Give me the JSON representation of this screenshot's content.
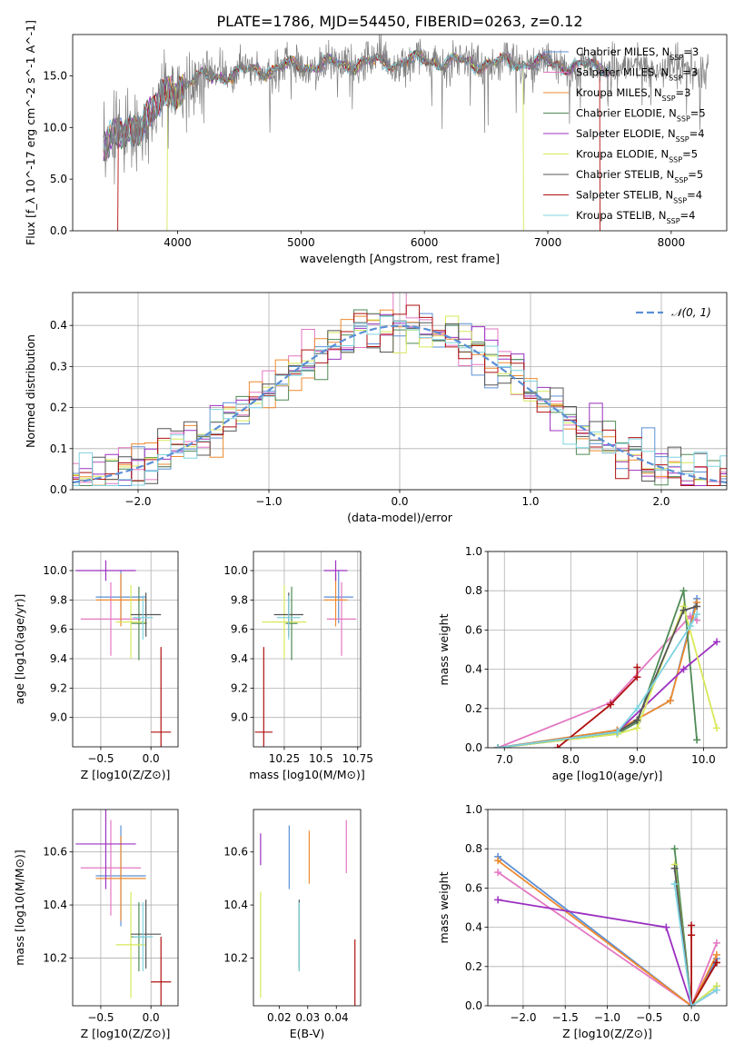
{
  "figure": {
    "title": "PLATE=1786, MJD=54450, FIBERID=0263, z=0.12"
  },
  "colors": {
    "Chabrier MILES": "#5b8fd6",
    "Salpeter MILES": "#e377c2",
    "Kroupa MILES": "#ee8a2e",
    "Chabrier ELODIE": "#4f8a55",
    "Salpeter ELODIE": "#9b30c0",
    "Kroupa ELODIE": "#d8e85a",
    "Chabrier STELIB": "#555555",
    "Salpeter STELIB": "#b01010",
    "Kroupa STELIB": "#7fd3e0",
    "data": "#7f7f7f",
    "normal": "#5b8fd6"
  },
  "chart_data": [
    {
      "id": "spectrum",
      "type": "line",
      "xlabel": "wavelength [Angstrom, rest frame]",
      "ylabel": "Flux [f_λ 10^-17 erg cm^-2 s^-1 A^-1]",
      "xlim": [
        3150,
        8450
      ],
      "ylim": [
        0,
        19
      ],
      "xticks": [
        4000,
        5000,
        6000,
        7000,
        8000
      ],
      "yticks": [
        0,
        5,
        10,
        15
      ],
      "grid": false,
      "legend_position": "upper-right",
      "legend": [
        {
          "name": "Chabrier MILES",
          "nssp": "3"
        },
        {
          "name": "Salpeter MILES",
          "nssp": "3"
        },
        {
          "name": "Kroupa MILES",
          "nssp": "3"
        },
        {
          "name": "Chabrier ELODIE",
          "nssp": "5"
        },
        {
          "name": "Salpeter ELODIE",
          "nssp": "4"
        },
        {
          "name": "Kroupa ELODIE",
          "nssp": "5"
        },
        {
          "name": "Chabrier STELIB",
          "nssp": "5"
        },
        {
          "name": "Salpeter STELIB",
          "nssp": "4"
        },
        {
          "name": "Kroupa STELIB",
          "nssp": "4"
        }
      ],
      "continuum": {
        "wavelength": [
          3400,
          3600,
          3800,
          3900,
          4000,
          4100,
          4300,
          4500,
          4700,
          5000,
          5300,
          5600,
          6000,
          6400,
          6800,
          7200,
          7500
        ],
        "flux": [
          8.5,
          9.5,
          11.5,
          13.0,
          13.8,
          14.5,
          15.0,
          15.3,
          15.6,
          16.0,
          16.1,
          16.3,
          16.5,
          16.2,
          16.3,
          16.0,
          15.8
        ]
      },
      "model_cutoffs": [
        {
          "series": "Salpeter STELIB",
          "start": 3520,
          "end": 7420
        },
        {
          "series": "Kroupa ELODIE",
          "start": 3920,
          "end": 6800
        }
      ]
    },
    {
      "id": "residuals",
      "type": "histogram",
      "xlabel": "(data-model)/error",
      "ylabel": "Normed distribution",
      "xlim": [
        -2.5,
        2.5
      ],
      "ylim": [
        0,
        0.48
      ],
      "xticks": [
        -2,
        -1,
        0,
        1,
        2
      ],
      "yticks": [
        0.0,
        0.1,
        0.2,
        0.3,
        0.4
      ],
      "grid": true,
      "bin_width": 0.1,
      "legend_position": "upper-right",
      "reference_curve": {
        "name": "𝒩(0, 1)",
        "mean": 0,
        "sigma": 1
      }
    },
    {
      "id": "age-vs-Z",
      "type": "scatter",
      "xlabel": "Z [log10(Z/Z⊙)]",
      "ylabel": "age  [log10(age/yr)]",
      "xlim": [
        -0.78,
        0.27
      ],
      "ylim": [
        8.8,
        10.13
      ],
      "xticks": [
        -0.5,
        0.0
      ],
      "yticks": [
        9.0,
        9.2,
        9.4,
        9.6,
        9.8,
        10.0
      ],
      "grid": true,
      "points": [
        {
          "series": "Chabrier MILES",
          "x": -0.3,
          "y": 9.82,
          "xerr": 0.25,
          "yerr": 0.18
        },
        {
          "series": "Salpeter MILES",
          "x": -0.4,
          "y": 9.67,
          "xerr": 0.3,
          "yerr": 0.25
        },
        {
          "series": "Kroupa MILES",
          "x": -0.3,
          "y": 9.8,
          "xerr": 0.25,
          "yerr": 0.18
        },
        {
          "series": "Chabrier ELODIE",
          "x": -0.12,
          "y": 9.64,
          "xerr": 0.08,
          "yerr": 0.25
        },
        {
          "series": "Salpeter ELODIE",
          "x": -0.45,
          "y": 10.0,
          "xerr": 0.3,
          "yerr": 0.07
        },
        {
          "series": "Kroupa ELODIE",
          "x": -0.2,
          "y": 9.65,
          "xerr": 0.15,
          "yerr": 0.25
        },
        {
          "series": "Chabrier STELIB",
          "x": -0.05,
          "y": 9.7,
          "xerr": 0.15,
          "yerr": 0.15
        },
        {
          "series": "Salpeter STELIB",
          "x": 0.1,
          "y": 8.9,
          "xerr": 0.1,
          "yerr": 0.58
        },
        {
          "series": "Kroupa STELIB",
          "x": -0.08,
          "y": 9.68,
          "xerr": 0.1,
          "yerr": 0.15
        }
      ]
    },
    {
      "id": "age-vs-mass",
      "type": "scatter",
      "xlabel": "mass [log10(M/M⊙)]",
      "ylabel": "",
      "xlim": [
        10.04,
        10.77
      ],
      "ylim": [
        8.8,
        10.13
      ],
      "xticks": [
        10.25,
        10.5,
        10.75
      ],
      "yticks": [
        9.0,
        9.2,
        9.4,
        9.6,
        9.8,
        10.0
      ],
      "grid": true,
      "points": [
        {
          "series": "Chabrier MILES",
          "x": 10.62,
          "y": 9.82,
          "xerr": 0.1,
          "yerr": 0.18
        },
        {
          "series": "Salpeter MILES",
          "x": 10.64,
          "y": 9.67,
          "xerr": 0.1,
          "yerr": 0.25
        },
        {
          "series": "Kroupa MILES",
          "x": 10.6,
          "y": 9.8,
          "xerr": 0.08,
          "yerr": 0.18
        },
        {
          "series": "Chabrier ELODIE",
          "x": 10.3,
          "y": 9.64,
          "xerr": 0.04,
          "yerr": 0.25
        },
        {
          "series": "Salpeter ELODIE",
          "x": 10.6,
          "y": 10.0,
          "xerr": 0.08,
          "yerr": 0.07
        },
        {
          "series": "Kroupa ELODIE",
          "x": 10.25,
          "y": 9.65,
          "xerr": 0.15,
          "yerr": 0.25
        },
        {
          "series": "Chabrier STELIB",
          "x": 10.28,
          "y": 9.7,
          "xerr": 0.1,
          "yerr": 0.15
        },
        {
          "series": "Salpeter STELIB",
          "x": 10.11,
          "y": 8.9,
          "xerr": 0.06,
          "yerr": 0.58
        },
        {
          "series": "Kroupa STELIB",
          "x": 10.28,
          "y": 9.68,
          "xerr": 0.08,
          "yerr": 0.15
        }
      ]
    },
    {
      "id": "massweight-vs-age",
      "type": "line",
      "xlabel": "age  [log10(age/yr)]",
      "ylabel": "mass weight",
      "xlim": [
        6.75,
        10.35
      ],
      "ylim": [
        0,
        1
      ],
      "xticks": [
        7,
        8,
        9,
        10
      ],
      "yticks": [
        0.0,
        0.2,
        0.4,
        0.6,
        0.8,
        1.0
      ],
      "grid": true,
      "series": [
        {
          "name": "Chabrier MILES",
          "x": [
            6.9,
            8.7,
            9.5,
            9.9
          ],
          "y": [
            0.0,
            0.09,
            0.24,
            0.76
          ]
        },
        {
          "name": "Salpeter MILES",
          "x": [
            6.9,
            8.6,
            9.8,
            9.9
          ],
          "y": [
            0.0,
            0.23,
            0.67,
            0.65
          ]
        },
        {
          "name": "Kroupa MILES",
          "x": [
            6.9,
            8.7,
            9.5,
            9.9
          ],
          "y": [
            0.0,
            0.09,
            0.24,
            0.74
          ]
        },
        {
          "name": "Chabrier ELODIE",
          "x": [
            6.9,
            8.7,
            9.0,
            9.7,
            9.9
          ],
          "y": [
            0.0,
            0.07,
            0.13,
            0.8,
            0.04
          ]
        },
        {
          "name": "Salpeter ELODIE",
          "x": [
            6.9,
            8.7,
            9.7,
            10.2
          ],
          "y": [
            0.0,
            0.08,
            0.4,
            0.54
          ]
        },
        {
          "name": "Kroupa ELODIE",
          "x": [
            6.9,
            8.7,
            9.0,
            9.7,
            10.2
          ],
          "y": [
            0.0,
            0.07,
            0.1,
            0.72,
            0.1
          ]
        },
        {
          "name": "Chabrier STELIB",
          "x": [
            6.9,
            8.7,
            9.0,
            9.7,
            9.9
          ],
          "y": [
            0.0,
            0.08,
            0.14,
            0.7,
            0.72
          ]
        },
        {
          "name": "Salpeter STELIB",
          "x": [
            7.8,
            8.6,
            9.0,
            9.0
          ],
          "y": [
            0.0,
            0.22,
            0.36,
            0.41
          ]
        },
        {
          "name": "Kroupa STELIB",
          "x": [
            6.9,
            8.7,
            9.0,
            9.8,
            9.9
          ],
          "y": [
            0.0,
            0.08,
            0.2,
            0.62,
            0.68
          ]
        }
      ]
    },
    {
      "id": "mass-vs-Z",
      "type": "scatter",
      "xlabel": "Z [log10(Z/Z⊙)]",
      "ylabel": "mass [log10(M/M⊙)]",
      "xlim": [
        -0.78,
        0.27
      ],
      "ylim": [
        10.02,
        10.76
      ],
      "xticks": [
        -0.5,
        0.0
      ],
      "yticks": [
        10.2,
        10.4,
        10.6
      ],
      "grid": true,
      "points": [
        {
          "series": "Chabrier MILES",
          "x": -0.3,
          "y": 10.51,
          "xerr": 0.25,
          "yerr": 0.19
        },
        {
          "series": "Salpeter MILES",
          "x": -0.4,
          "y": 10.54,
          "xerr": 0.3,
          "yerr": 0.18
        },
        {
          "series": "Kroupa MILES",
          "x": -0.3,
          "y": 10.5,
          "xerr": 0.25,
          "yerr": 0.16
        },
        {
          "series": "Chabrier ELODIE",
          "x": -0.12,
          "y": 10.28,
          "xerr": 0.08,
          "yerr": 0.13
        },
        {
          "series": "Salpeter ELODIE",
          "x": -0.45,
          "y": 10.63,
          "xerr": 0.3,
          "yerr": 0.17
        },
        {
          "series": "Kroupa ELODIE",
          "x": -0.2,
          "y": 10.25,
          "xerr": 0.15,
          "yerr": 0.2
        },
        {
          "series": "Chabrier STELIB",
          "x": -0.05,
          "y": 10.29,
          "xerr": 0.15,
          "yerr": 0.13
        },
        {
          "series": "Salpeter STELIB",
          "x": 0.1,
          "y": 10.11,
          "xerr": 0.1,
          "yerr": 0.17
        },
        {
          "series": "Kroupa STELIB",
          "x": -0.08,
          "y": 10.28,
          "xerr": 0.1,
          "yerr": 0.13
        }
      ]
    },
    {
      "id": "mass-vs-EBV",
      "type": "scatter",
      "xlabel": "E(B-V)",
      "ylabel": "",
      "xlim": [
        0.011,
        0.0485
      ],
      "ylim": [
        10.02,
        10.76
      ],
      "xticks": [
        0.02,
        0.03,
        0.04
      ],
      "yticks": [
        10.2,
        10.4,
        10.6
      ],
      "grid": false,
      "points": [
        {
          "series": "Chabrier MILES",
          "x": 0.0235,
          "y": 10.58,
          "xerr": 0,
          "yerr": 0.12
        },
        {
          "series": "Salpeter MILES",
          "x": 0.0435,
          "y": 10.62,
          "xerr": 0,
          "yerr": 0.1
        },
        {
          "series": "Kroupa MILES",
          "x": 0.0305,
          "y": 10.58,
          "xerr": 0,
          "yerr": 0.1
        },
        {
          "series": "Chabrier ELODIE",
          "x": 0.027,
          "y": 10.28,
          "xerr": 0,
          "yerr": 0.13
        },
        {
          "series": "Salpeter ELODIE",
          "x": 0.0135,
          "y": 10.61,
          "xerr": 0,
          "yerr": 0.06
        },
        {
          "series": "Kroupa ELODIE",
          "x": 0.0135,
          "y": 10.25,
          "xerr": 0,
          "yerr": 0.2
        },
        {
          "series": "Chabrier STELIB",
          "x": 0.027,
          "y": 10.29,
          "xerr": 0,
          "yerr": 0.13
        },
        {
          "series": "Salpeter STELIB",
          "x": 0.0465,
          "y": 10.14,
          "xerr": 0,
          "yerr": 0.13
        },
        {
          "series": "Kroupa STELIB",
          "x": 0.027,
          "y": 10.28,
          "xerr": 0,
          "yerr": 0.13
        }
      ]
    },
    {
      "id": "massweight-vs-Z",
      "type": "line",
      "xlabel": "Z [log10(Z/Z⊙)]",
      "ylabel": "mass weight",
      "xlim": [
        -2.42,
        0.42
      ],
      "ylim": [
        0,
        1
      ],
      "xticks": [
        -2.0,
        -1.5,
        -1.0,
        -0.5,
        0.0
      ],
      "yticks": [
        0.0,
        0.2,
        0.4,
        0.6,
        0.8,
        1.0
      ],
      "grid": true,
      "series": [
        {
          "name": "Chabrier MILES",
          "x": [
            -2.3,
            0.0,
            0.3
          ],
          "y": [
            0.76,
            0.0,
            0.24
          ]
        },
        {
          "name": "Salpeter MILES",
          "x": [
            -2.3,
            0.0,
            0.3
          ],
          "y": [
            0.68,
            0.0,
            0.32
          ]
        },
        {
          "name": "Kroupa MILES",
          "x": [
            -2.3,
            0.0,
            0.3
          ],
          "y": [
            0.74,
            0.0,
            0.26
          ]
        },
        {
          "name": "Chabrier ELODIE",
          "x": [
            -0.2,
            0.0,
            0.3
          ],
          "y": [
            0.8,
            0.0,
            0.1
          ]
        },
        {
          "name": "Salpeter ELODIE",
          "x": [
            -2.3,
            -0.3,
            0.0,
            0.3
          ],
          "y": [
            0.54,
            0.4,
            0.0,
            0.08
          ]
        },
        {
          "name": "Kroupa ELODIE",
          "x": [
            -0.2,
            0.0,
            0.3
          ],
          "y": [
            0.72,
            0.0,
            0.1
          ]
        },
        {
          "name": "Chabrier STELIB",
          "x": [
            -0.2,
            0.0,
            0.3
          ],
          "y": [
            0.7,
            0.0,
            0.22
          ]
        },
        {
          "name": "Salpeter STELIB",
          "x": [
            0.0,
            0.0,
            0.0,
            0.3
          ],
          "y": [
            0.41,
            0.36,
            0.0,
            0.22
          ]
        },
        {
          "name": "Kroupa STELIB",
          "x": [
            -0.2,
            0.0,
            0.3
          ],
          "y": [
            0.62,
            0.0,
            0.08
          ]
        }
      ]
    }
  ]
}
